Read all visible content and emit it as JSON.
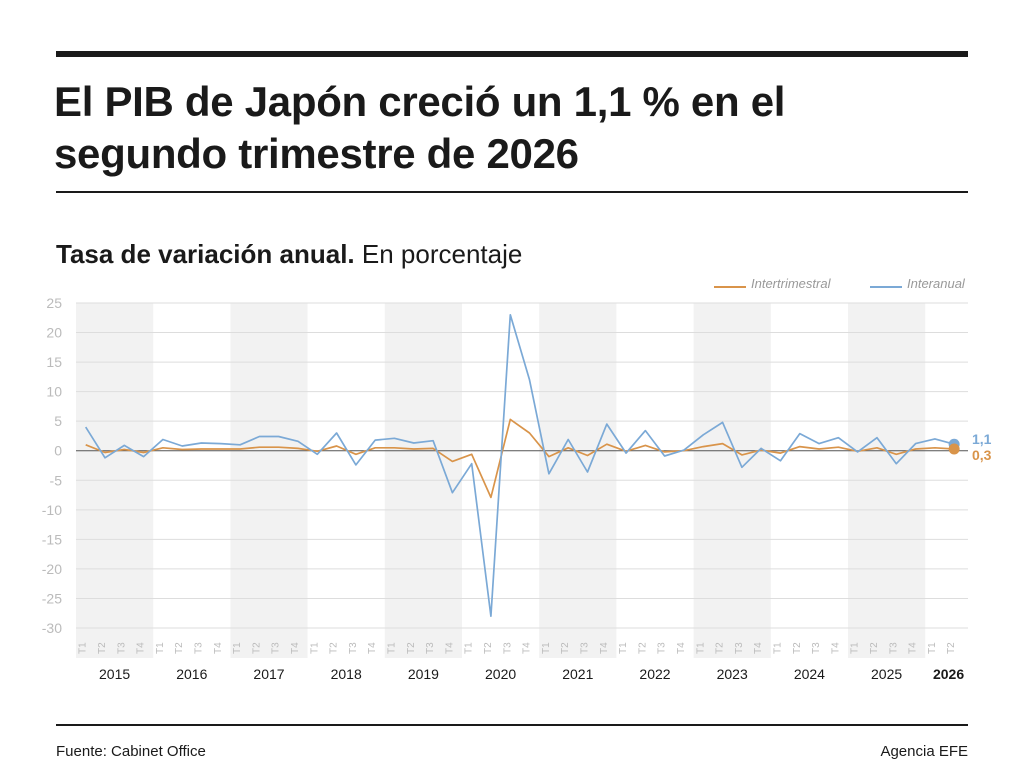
{
  "header": {
    "title_line1": "El PIB de Japón creció un 1,1 % en el",
    "title_line2": "segundo trimestre de 2026",
    "subtitle_bold": "Tasa de variación anual.",
    "subtitle_rest": " En porcentaje"
  },
  "footer": {
    "source": "Fuente: Cabinet Office",
    "credit": "Agencia EFE"
  },
  "colors": {
    "interanual": "#7ba9d6",
    "intertrimestral": "#d9944a",
    "band": "#f2f2f2",
    "grid": "#dddddd",
    "tick": "#bbbbbb",
    "zero_line": "#555555"
  },
  "chart_data": {
    "type": "line",
    "title": "Tasa de variación anual. En porcentaje",
    "ylim": [
      -30,
      25
    ],
    "yticks": [
      25,
      20,
      15,
      10,
      5,
      0,
      -5,
      -10,
      -15,
      -20,
      -25,
      -30
    ],
    "grid": true,
    "legend_position": "top-right",
    "years": [
      "2015",
      "2016",
      "2017",
      "2018",
      "2019",
      "2020",
      "2021",
      "2022",
      "2023",
      "2024",
      "2025",
      "2026"
    ],
    "quarter_labels": [
      "T1",
      "T2",
      "T3",
      "T4"
    ],
    "categories": [
      "2015 T1",
      "2015 T2",
      "2015 T3",
      "2015 T4",
      "2016 T1",
      "2016 T2",
      "2016 T3",
      "2016 T4",
      "2017 T1",
      "2017 T2",
      "2017 T3",
      "2017 T4",
      "2018 T1",
      "2018 T2",
      "2018 T3",
      "2018 T4",
      "2019 T1",
      "2019 T2",
      "2019 T3",
      "2019 T4",
      "2020 T1",
      "2020 T2",
      "2020 T3",
      "2020 T4",
      "2021 T1",
      "2021 T2",
      "2021 T3",
      "2021 T4",
      "2022 T1",
      "2022 T2",
      "2022 T3",
      "2022 T4",
      "2023 T1",
      "2023 T2",
      "2023 T3",
      "2023 T4",
      "2024 T1",
      "2024 T2",
      "2024 T3",
      "2024 T4",
      "2025 T1",
      "2025 T2",
      "2025 T3",
      "2025 T4",
      "2026 T1",
      "2026 T2"
    ],
    "series": [
      {
        "name": "Interanual",
        "values": [
          4.0,
          -1.2,
          0.9,
          -1.0,
          1.9,
          0.8,
          1.3,
          1.2,
          1.0,
          2.4,
          2.4,
          1.6,
          -0.6,
          3.0,
          -2.4,
          1.8,
          2.1,
          1.3,
          1.7,
          -7.1,
          -2.2,
          -28.0,
          23.0,
          12.0,
          -3.9,
          1.9,
          -3.6,
          4.5,
          -0.4,
          3.4,
          -0.9,
          0.1,
          2.7,
          4.8,
          -2.8,
          0.4,
          -1.7,
          2.9,
          1.2,
          2.2,
          -0.2,
          2.2,
          -2.2,
          1.2,
          2.0,
          1.1
        ]
      },
      {
        "name": "Intertrimestral",
        "values": [
          1.0,
          -0.3,
          0.2,
          -0.3,
          0.5,
          0.2,
          0.3,
          0.3,
          0.3,
          0.6,
          0.6,
          0.4,
          -0.1,
          0.8,
          -0.6,
          0.5,
          0.5,
          0.3,
          0.4,
          -1.8,
          -0.6,
          -7.9,
          5.3,
          3.0,
          -1.0,
          0.5,
          -0.8,
          1.1,
          -0.1,
          0.9,
          -0.2,
          0.0,
          0.7,
          1.2,
          -0.7,
          0.1,
          -0.4,
          0.7,
          0.3,
          0.6,
          -0.1,
          0.5,
          -0.6,
          0.3,
          0.5,
          0.3
        ]
      }
    ],
    "end_labels": {
      "Interanual": "1,1",
      "Intertrimestral": "0,3"
    }
  }
}
